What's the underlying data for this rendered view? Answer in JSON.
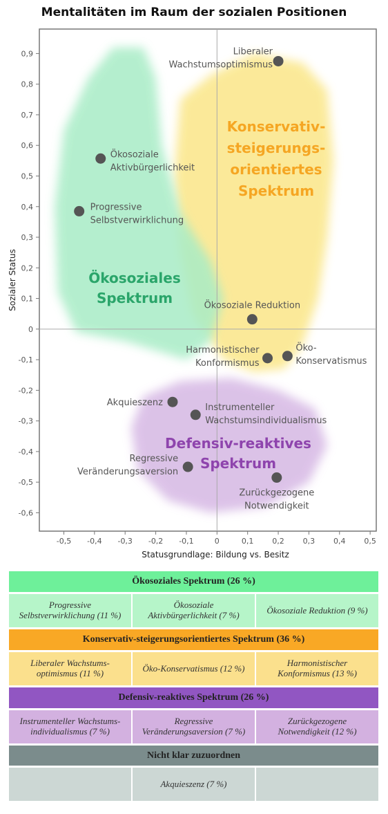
{
  "title": "Mentalitäten im Raum der sozialen Positionen",
  "colors": {
    "green_blob": "#a8ecc6",
    "yellow_blob": "#fbe891",
    "purple_blob": "#d9bde6",
    "point": "#555555",
    "green_text": "#2aa56a",
    "orange_text": "#f5a623",
    "purple_text": "#8e44ad",
    "table_green_head": "#6ef09a",
    "table_green_cell": "#b6f5c9",
    "table_orange_head": "#f9a825",
    "table_orange_cell": "#fbe08d",
    "table_purple_head": "#9156c2",
    "table_purple_cell": "#d3b1e0",
    "table_grey_head": "#7b8c8c",
    "table_grey_cell": "#ccd7d4"
  },
  "chart_data": {
    "type": "scatter",
    "xlabel": "Statusgrundlage: Bildung vs. Besitz",
    "ylabel": "Sozialer Status",
    "xlim": [
      -0.58,
      0.52
    ],
    "ylim": [
      -0.66,
      0.98
    ],
    "xticks": [
      "-0,5",
      "-0,4",
      "-0,3",
      "-0,2",
      "-0,1",
      "0",
      "0,1",
      "0,2",
      "0,3",
      "0,4",
      "0,5"
    ],
    "yticks": [
      "0,9",
      "0,8",
      "0,7",
      "0,6",
      "0,5",
      "0,4",
      "0,3",
      "0,2",
      "0,1",
      "0",
      "-0,1",
      "-0,2",
      "-0,3",
      "-0,4",
      "-0,5",
      "-0,6"
    ],
    "zero_lines": true,
    "points": [
      {
        "x": 0.2,
        "y": 0.875,
        "label": [
          "Liberaler",
          "Wachstumsoptimismus"
        ]
      },
      {
        "x": -0.38,
        "y": 0.557,
        "label": [
          "Ökosoziale",
          "Aktivbürgerlichkeit"
        ]
      },
      {
        "x": -0.45,
        "y": 0.385,
        "label": [
          "Progressive",
          "Selbstverwirklichung"
        ]
      },
      {
        "x": 0.115,
        "y": 0.032,
        "label": [
          "Ökosoziale Reduktion"
        ]
      },
      {
        "x": 0.165,
        "y": -0.095,
        "label": [
          "Harmonistischer",
          "Konformismus"
        ]
      },
      {
        "x": 0.23,
        "y": -0.088,
        "label": [
          "Öko-",
          "Konservatismus"
        ]
      },
      {
        "x": -0.145,
        "y": -0.238,
        "label": [
          "Akquieszenz"
        ]
      },
      {
        "x": -0.07,
        "y": -0.28,
        "label": [
          "Instrumenteller",
          "Wachstumsindividualismus"
        ]
      },
      {
        "x": -0.095,
        "y": -0.45,
        "label": [
          "Regressive",
          "Veränderungsaversion"
        ]
      },
      {
        "x": 0.195,
        "y": -0.485,
        "label": [
          "Zurückgezogene",
          "Notwendigkeit"
        ]
      }
    ],
    "groups": [
      {
        "name": [
          "Konservativ-",
          "steigerungs-",
          "orientiertes",
          "Spektrum"
        ]
      },
      {
        "name": [
          "Ökosoziales",
          "Spektrum"
        ]
      },
      {
        "name": [
          "Defensiv-reaktives",
          "Spektrum"
        ]
      }
    ]
  },
  "table": {
    "sections": [
      {
        "header": "Ökosoziales Spektrum (26 %)",
        "cells": [
          "Progressive\nSelbstverwirklichung (11 %)",
          "Ökosoziale\nAktivbürgerlichkeit (7 %)",
          "Ökosoziale Reduktion (9 %)"
        ]
      },
      {
        "header": "Konservativ-steigerungsorientiertes Spektrum (36 %)",
        "cells": [
          "Liberaler Wachstums-\noptimismus (11 %)",
          "Öko-Konservatismus (12 %)",
          "Harmonistischer\nKonformismus (13 %)"
        ]
      },
      {
        "header": "Defensiv-reaktives Spektrum (26 %)",
        "cells": [
          "Instrumenteller Wachstums-\nindividualismus (7 %)",
          "Regressive\nVeränderungsaversion (7 %)",
          "Zurückgezogene\nNotwendigkeit (12 %)"
        ]
      },
      {
        "header": "Nicht klar zuzuordnen",
        "cells": [
          "",
          "Akquieszenz (7 %)",
          ""
        ]
      }
    ]
  }
}
